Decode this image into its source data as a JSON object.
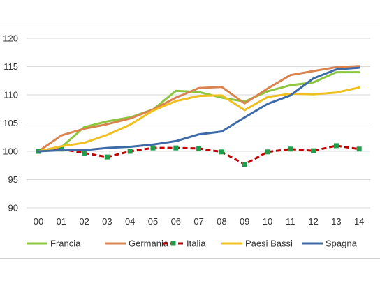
{
  "chart_data": {
    "type": "line",
    "title": "",
    "xlabel": "",
    "ylabel": "",
    "categories": [
      "00",
      "01",
      "02",
      "03",
      "04",
      "05",
      "06",
      "07",
      "08",
      "09",
      "10",
      "11",
      "12",
      "13",
      "14"
    ],
    "ylim": [
      90,
      120
    ],
    "yticks": [
      90,
      95,
      100,
      105,
      110,
      115,
      120
    ],
    "grid": "horizontal",
    "legend_position": "bottom",
    "series": [
      {
        "name": "Francia",
        "color": "#8cc63f",
        "marker": "none",
        "values": [
          100,
          100.7,
          104.3,
          105.3,
          106.0,
          107.4,
          110.7,
          110.5,
          109.5,
          108.8,
          110.6,
          111.7,
          112.2,
          114.0,
          114.0
        ]
      },
      {
        "name": "Germania",
        "color": "#d9834f",
        "marker": "none",
        "values": [
          100,
          102.8,
          104.0,
          104.8,
          105.8,
          107.4,
          109.5,
          111.2,
          111.4,
          108.5,
          111.1,
          113.5,
          114.2,
          114.9,
          115.1
        ]
      },
      {
        "name": "Italia",
        "color": "#c00000",
        "marker": "square",
        "dashed": true,
        "marker_color": "#1e9e4a",
        "values": [
          100,
          100.4,
          99.7,
          99.0,
          100.0,
          100.6,
          100.6,
          100.5,
          99.9,
          97.7,
          99.9,
          100.4,
          100.1,
          101.0,
          100.4
        ]
      },
      {
        "name": "Paesi Bassi",
        "color": "#f0c020",
        "marker": "none",
        "values": [
          100,
          100.9,
          101.5,
          102.9,
          104.7,
          107.2,
          108.9,
          109.8,
          109.9,
          107.3,
          109.6,
          110.2,
          110.1,
          110.4,
          111.3
        ]
      },
      {
        "name": "Spagna",
        "color": "#3e6aa8",
        "marker": "none",
        "values": [
          100,
          100.2,
          100.2,
          100.6,
          100.8,
          101.2,
          101.8,
          103.0,
          103.5,
          106.0,
          108.4,
          109.9,
          112.9,
          114.5,
          114.8
        ]
      }
    ]
  }
}
